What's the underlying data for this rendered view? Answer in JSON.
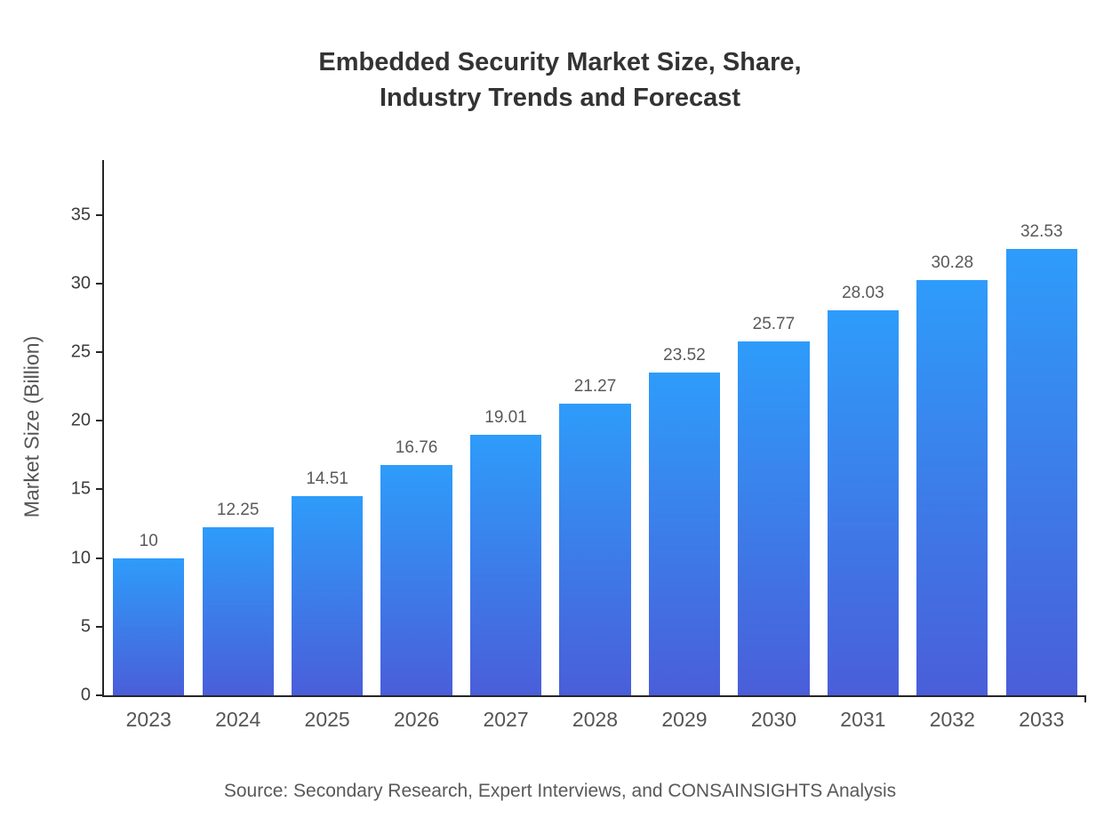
{
  "title": {
    "line1": "Embedded Security Market Size, Share,",
    "line2": "Industry Trends and Forecast"
  },
  "y_axis_label": "Market Size (Billion)",
  "source_caption": "Source: Secondary Research, Expert Interviews, and CONSAINSIGHTS Analysis",
  "chart_data": {
    "type": "bar",
    "title": "Embedded Security Market Size, Share, Industry Trends and Forecast",
    "categories": [
      "2023",
      "2024",
      "2025",
      "2026",
      "2027",
      "2028",
      "2029",
      "2030",
      "2031",
      "2032",
      "2033"
    ],
    "values": [
      10,
      12.25,
      14.51,
      16.76,
      19.01,
      21.27,
      23.52,
      25.77,
      28.03,
      30.28,
      32.53
    ],
    "value_labels": [
      "10",
      "12.25",
      "14.51",
      "16.76",
      "19.01",
      "21.27",
      "23.52",
      "25.77",
      "28.03",
      "30.28",
      "32.53"
    ],
    "xlabel": "",
    "ylabel": "Market Size (Billion)",
    "ylim": [
      0,
      39
    ],
    "yticks": [
      0,
      5,
      10,
      15,
      20,
      25,
      30,
      35
    ],
    "grid": false,
    "legend": false,
    "bar_color_top": "#2E9CFA",
    "bar_color_bottom": "#4A5ED9"
  },
  "colors": {
    "background": "#ffffff",
    "title": "#333333",
    "axis": "#262626",
    "y_tick_label": "#3d3d3d",
    "x_tick_label": "#555555",
    "value_label": "#595959",
    "caption": "#595959"
  }
}
